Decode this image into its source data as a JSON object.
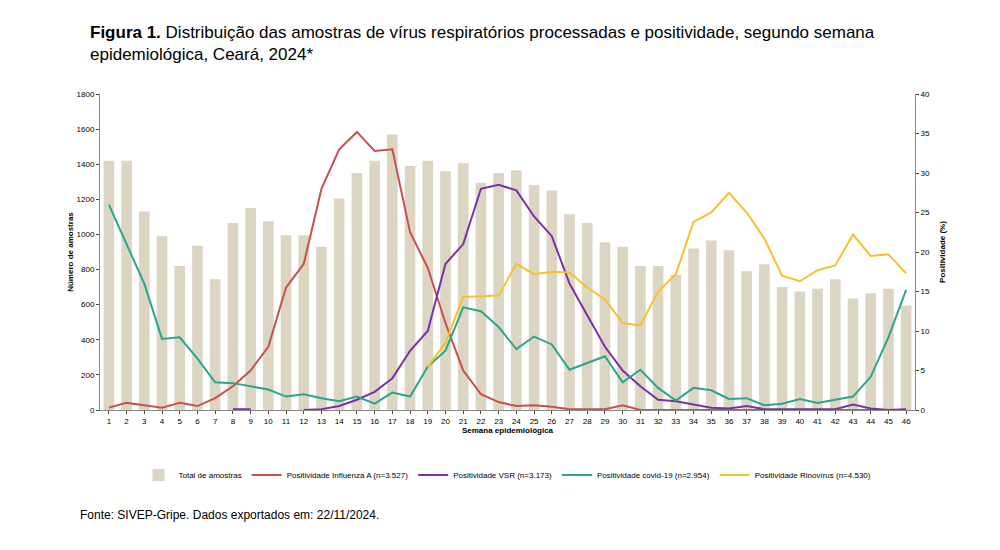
{
  "chart_data": {
    "type": "bar",
    "title": "Figura 1. Distribuição das amostras de vírus respiratórios processadas e positividade, segundo semana epidemiológica, Ceará, 2024*",
    "annotations": [
      "Fonte: SIVEP-Gripe. Dados exportados em: 22/11/2024."
    ],
    "x_label": "Semana epidemiológica",
    "y_label": "Número de amostras",
    "y2_label": "Positividade (%)",
    "x": [
      1,
      2,
      3,
      4,
      5,
      6,
      7,
      8,
      9,
      10,
      11,
      12,
      13,
      14,
      15,
      16,
      17,
      18,
      19,
      20,
      21,
      22,
      23,
      24,
      25,
      26,
      27,
      28,
      29,
      30,
      31,
      32,
      33,
      34,
      35,
      36,
      37,
      38,
      39,
      40,
      41,
      42,
      43,
      44,
      45,
      46
    ],
    "xlim": [
      0.5,
      46.5
    ],
    "xticks": [
      1,
      2,
      3,
      4,
      5,
      6,
      7,
      8,
      9,
      10,
      11,
      12,
      13,
      14,
      15,
      16,
      17,
      18,
      19,
      20,
      21,
      22,
      23,
      24,
      25,
      26,
      27,
      28,
      29,
      30,
      31,
      32,
      33,
      34,
      35,
      36,
      37,
      38,
      39,
      40,
      41,
      42,
      43,
      44,
      45,
      46
    ],
    "ylim": [
      0,
      1800
    ],
    "yticks": [
      0,
      200,
      400,
      600,
      800,
      1000,
      1200,
      1400,
      1600,
      1800
    ],
    "y2lim": [
      0,
      40
    ],
    "y2ticks": [
      0,
      5,
      10,
      15,
      20,
      25,
      30,
      35,
      40
    ],
    "grid": false,
    "legend": "bottom",
    "series": [
      {
        "name": "Total de amostras",
        "type": "bar",
        "color": "#dbd5c2",
        "values": [
          1420,
          1420,
          1130,
          990,
          820,
          935,
          745,
          1065,
          1150,
          1075,
          995,
          995,
          930,
          1205,
          1350,
          1420,
          1570,
          1390,
          1420,
          1360,
          1405,
          1295,
          1350,
          1365,
          1280,
          1250,
          1115,
          1065,
          955,
          930,
          820,
          820,
          770,
          920,
          965,
          910,
          790,
          830,
          700,
          675,
          690,
          745,
          635,
          665,
          690,
          595
        ]
      },
      {
        "name": "Positividade Influenza A (n=3.527)",
        "type": "line",
        "axis": "y2",
        "color": "#c9504b",
        "values": [
          0.3,
          0.9,
          0.6,
          0.3,
          0.9,
          0.5,
          1.5,
          3,
          5,
          8,
          15.5,
          18.5,
          28,
          33,
          35.2,
          32.8,
          33,
          22.5,
          18,
          11,
          5,
          2,
          1,
          0.5,
          0.6,
          0.4,
          0.1,
          0.1,
          0.1,
          0.6,
          0,
          0,
          0,
          0,
          0,
          0,
          0,
          0,
          0,
          0,
          0,
          0,
          0,
          0,
          0,
          0
        ]
      },
      {
        "name": "Positividade VSR (n=3.173)",
        "type": "line",
        "axis": "y2",
        "color": "#7a30a8",
        "values": [
          null,
          null,
          null,
          null,
          null,
          null,
          null,
          0.1,
          0.1,
          null,
          null,
          0,
          0.1,
          0.5,
          1.3,
          2.3,
          4,
          7.5,
          10,
          18.5,
          21,
          28,
          28.5,
          27.8,
          24.5,
          22,
          16,
          12,
          8,
          5,
          3,
          1.3,
          1.1,
          0.7,
          0.3,
          0.2,
          0.5,
          0.1,
          0.1,
          0.1,
          0.1,
          0.1,
          0.7,
          0.2,
          0,
          0.1
        ]
      },
      {
        "name": "Positividade covid-19 (n=2.954)",
        "type": "line",
        "axis": "y2",
        "color": "#2aa58e",
        "values": [
          26,
          21,
          16,
          9,
          9.2,
          6.5,
          3.5,
          3.4,
          3,
          2.6,
          1.7,
          2,
          1.5,
          1.1,
          1.7,
          0.8,
          2.2,
          1.7,
          5.5,
          7.5,
          13,
          12.5,
          10.5,
          7.7,
          9.3,
          8.3,
          5.1,
          6,
          6.8,
          3.5,
          5.1,
          2.8,
          1.2,
          2.8,
          2.5,
          1.4,
          1.5,
          0.6,
          0.8,
          1.4,
          0.9,
          1.3,
          1.7,
          4.2,
          9.2,
          15.2
        ]
      },
      {
        "name": "Positividade Rinovírus (n=4.530)",
        "type": "line",
        "axis": "y2",
        "color": "#f5c12e",
        "values": [
          null,
          null,
          null,
          null,
          null,
          null,
          null,
          null,
          null,
          null,
          null,
          null,
          null,
          null,
          null,
          null,
          null,
          null,
          5.5,
          8.5,
          14.3,
          14.4,
          14.5,
          18.5,
          17.2,
          17.5,
          17.4,
          15.5,
          14,
          11,
          10.7,
          15,
          17.2,
          23.8,
          25,
          27.5,
          25,
          21.7,
          17,
          16.3,
          17.7,
          18.3,
          22.2,
          19.5,
          19.7,
          17.3
        ]
      }
    ]
  }
}
